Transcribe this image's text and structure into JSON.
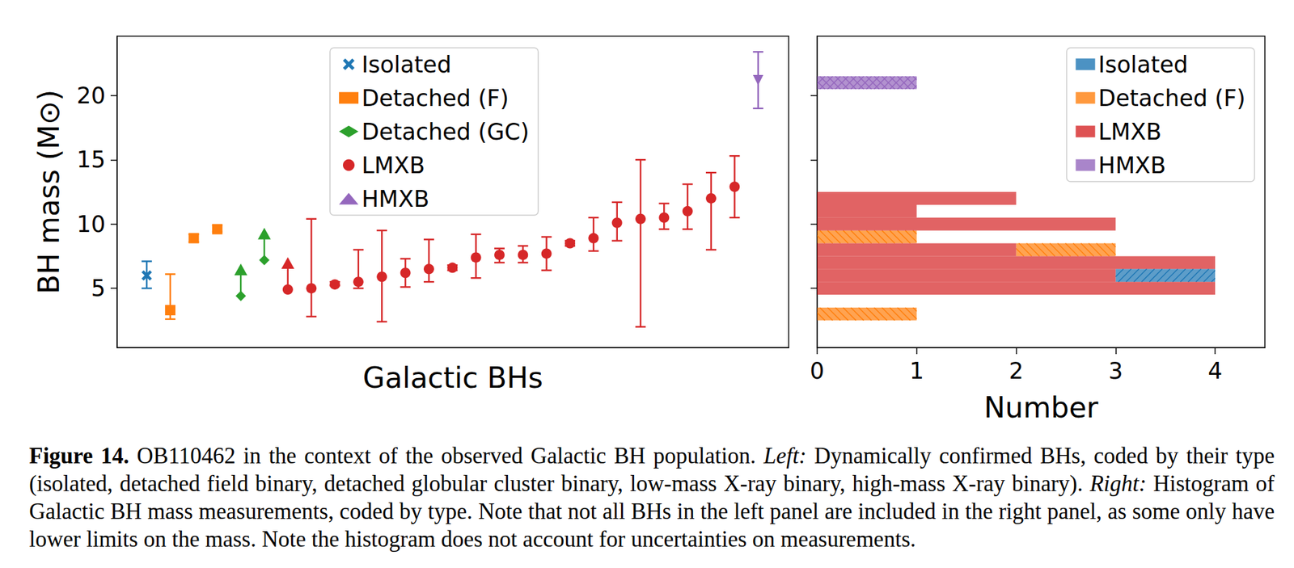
{
  "caption": {
    "segments": [
      {
        "text": "Figure 14.",
        "bold": true
      },
      {
        "text": " OB110462 in the context of the observed Galactic BH population. "
      },
      {
        "text": "Left:",
        "italic": true
      },
      {
        "text": " Dynamically confirmed BHs, coded by their type (isolated, detached field binary, detached globular cluster binary, low-mass X-ray binary, high-mass X-ray binary). "
      },
      {
        "text": "Right:",
        "italic": true
      },
      {
        "text": " Histogram of Galactic BH mass measurements, coded by type. Note that not all BHs in the left panel are included in the right panel, as some only have lower limits on the mass. Note the histogram does not account for uncertainties on measurements."
      }
    ]
  },
  "chart_data": [
    {
      "type": "scatter",
      "xlabel": "Galactic BHs",
      "ylabel": "BH mass (M⊙)",
      "xlim": [
        -1.26,
        27.3
      ],
      "xticks": [],
      "ylim": [
        0.38,
        24.62
      ],
      "yticks": [
        5,
        10,
        15,
        20
      ],
      "tick_labels": "y",
      "legend": "upper center",
      "series": [
        {
          "name": "Isolated",
          "color": "#1f77b4",
          "marker": "x",
          "x": [
            0
          ],
          "values": [
            6.0
          ],
          "lower": [
            5.0
          ],
          "upper": [
            7.1
          ]
        },
        {
          "name": "Detached (F)",
          "color": "#ff7f0e",
          "marker": "square",
          "x": [
            1,
            2,
            3
          ],
          "values": [
            3.3,
            8.9,
            9.6
          ],
          "lower": [
            2.6,
            8.6,
            9.4
          ],
          "upper": [
            6.1,
            9.2,
            9.9
          ]
        },
        {
          "name": "Detached (GC)",
          "color": "#2ca02c",
          "marker": "diamond",
          "x": [
            4,
            5
          ],
          "values": [
            4.4,
            7.2
          ],
          "lower_limit": [
            true,
            true
          ]
        },
        {
          "name": "LMXB",
          "color": "#d62728",
          "marker": "circle",
          "x": [
            6,
            7,
            8,
            9,
            10,
            11,
            12,
            13,
            14,
            15,
            16,
            17,
            18,
            19,
            20,
            21,
            22,
            23,
            24,
            25
          ],
          "values": [
            4.9,
            5.0,
            5.3,
            5.5,
            5.9,
            6.2,
            6.5,
            6.6,
            7.4,
            7.6,
            7.6,
            7.7,
            8.5,
            8.9,
            10.1,
            10.4,
            10.5,
            11.0,
            12.0,
            12.9
          ],
          "lower": [
            null,
            2.8,
            5.2,
            5.0,
            2.4,
            5.1,
            5.5,
            6.4,
            5.8,
            7.0,
            7.0,
            6.4,
            8.3,
            7.9,
            8.7,
            2.0,
            9.6,
            9.6,
            8.0,
            10.5
          ],
          "upper": [
            null,
            10.4,
            5.5,
            8.0,
            9.5,
            7.3,
            8.8,
            6.8,
            9.2,
            8.1,
            8.3,
            9.0,
            8.7,
            10.5,
            11.7,
            15.0,
            11.6,
            13.1,
            14.0,
            15.3
          ],
          "lower_limit": [
            true,
            false,
            false,
            false,
            false,
            false,
            false,
            false,
            false,
            false,
            false,
            false,
            false,
            false,
            false,
            false,
            false,
            false,
            false,
            false
          ]
        },
        {
          "name": "HMXB",
          "color": "#9467bd",
          "marker": "triangle_down",
          "x": [
            26
          ],
          "values": [
            21.2
          ],
          "lower": [
            19.0
          ],
          "upper": [
            23.4
          ]
        }
      ]
    },
    {
      "type": "histogram",
      "orientation": "horizontal",
      "stacked": true,
      "xlabel": "Number",
      "xlim": [
        0,
        4.5
      ],
      "xticks": [
        0,
        1,
        2,
        3,
        4
      ],
      "ylim": [
        0.38,
        24.62
      ],
      "yticks": [
        5,
        10,
        15,
        20
      ],
      "tick_labels": "x",
      "legend": "upper right",
      "bins": [
        2.5,
        3.5,
        4.5,
        5.5,
        6.5,
        7.5,
        8.5,
        9.5,
        10.5,
        11.5,
        12.5,
        13.5,
        14.5,
        15.5,
        16.5,
        17.5,
        18.5,
        19.5,
        20.5,
        21.5
      ],
      "series": [
        {
          "name": "Isolated",
          "color": "#1f77b4",
          "marker": "//",
          "values": [
            0,
            0,
            0,
            1,
            0,
            0,
            0,
            0,
            0,
            0,
            0,
            0,
            0,
            0,
            0,
            0,
            0,
            0,
            0
          ]
        },
        {
          "name": "Detached (F)",
          "color": "#ff7f0e",
          "marker": "\\\\",
          "values": [
            1,
            0,
            0,
            0,
            0,
            1,
            1,
            0,
            0,
            0,
            0,
            0,
            0,
            0,
            0,
            0,
            0,
            0,
            0
          ]
        },
        {
          "name": "LMXB",
          "color": "#d62728",
          "marker": "solid",
          "values": [
            0,
            0,
            4,
            3,
            4,
            2,
            0,
            3,
            1,
            2,
            0,
            0,
            0,
            0,
            0,
            0,
            0,
            0,
            0
          ]
        },
        {
          "name": "HMXB",
          "color": "#9467bd",
          "marker": "xx",
          "values": [
            0,
            0,
            0,
            0,
            0,
            0,
            0,
            0,
            0,
            0,
            0,
            0,
            0,
            0,
            0,
            0,
            0,
            0,
            1
          ]
        }
      ]
    }
  ]
}
